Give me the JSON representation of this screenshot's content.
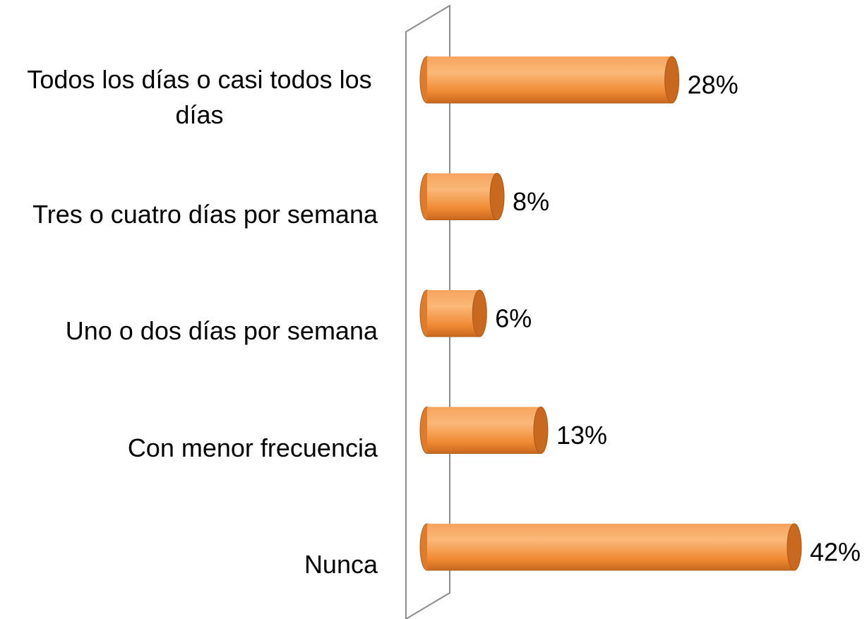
{
  "chart_data": {
    "type": "bar",
    "orientation": "horizontal",
    "categories": [
      "Todos los días o casi todos los días",
      "Tres o cuatro días por semana",
      "Uno o dos días por semana",
      "Con menor frecuencia",
      "Nunca"
    ],
    "values": [
      28,
      8,
      6,
      13,
      42
    ],
    "value_labels": [
      "28%",
      "8%",
      "6%",
      "13%",
      "42%"
    ],
    "color": "#f79646"
  }
}
